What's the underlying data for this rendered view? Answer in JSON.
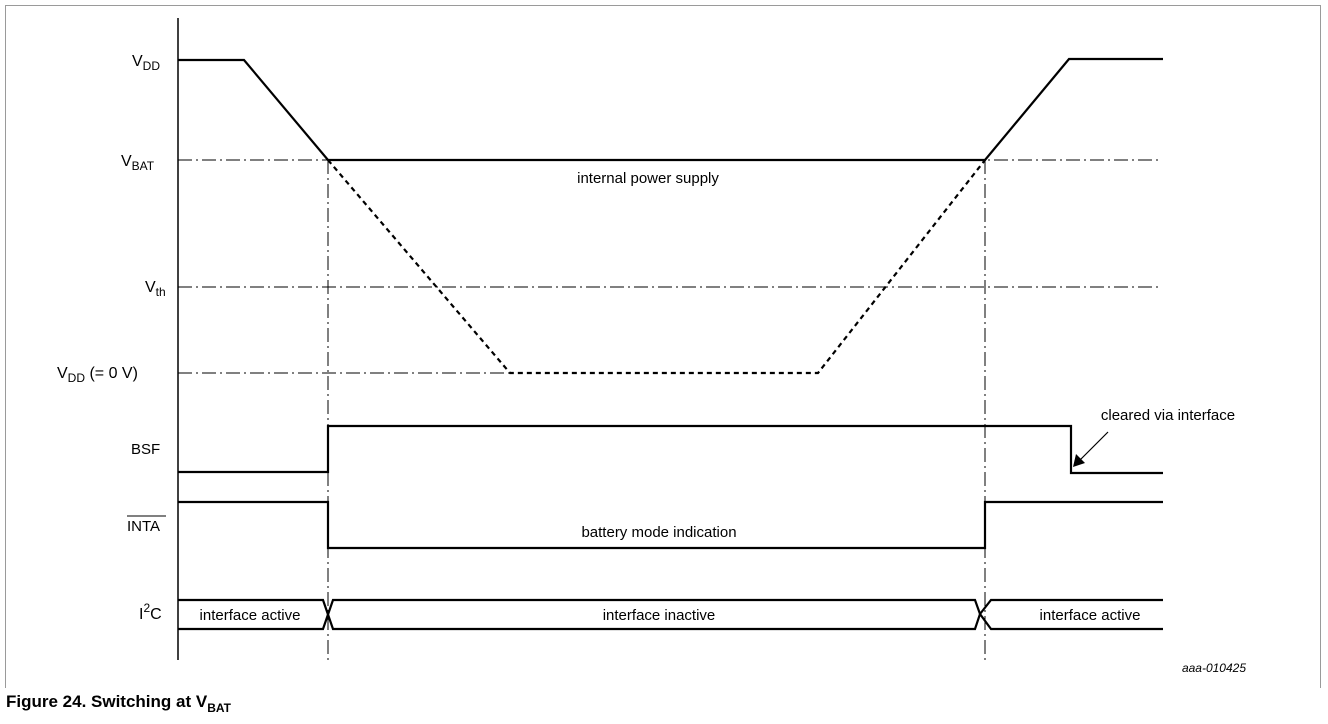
{
  "figure": {
    "caption_prefix": "Figure 24.  Switching at V",
    "caption_sub": "BAT",
    "id_code": "aaa-010425"
  },
  "signals": {
    "vdd": {
      "main": "V",
      "sub": "DD"
    },
    "vbat": {
      "main": "V",
      "sub": "BAT"
    },
    "vth": {
      "main": "V",
      "sub": "th"
    },
    "vdd0": {
      "main": "V",
      "sub": "DD",
      "suffix": " (= 0 V)"
    },
    "bsf": "BSF",
    "inta": "INTA",
    "i2c": {
      "main": "I",
      "sup": "2",
      "suffix": "C"
    }
  },
  "annotations": {
    "internal_power_supply": "internal power supply",
    "battery_mode_indication": "battery mode indication",
    "cleared_via_interface": "cleared via interface",
    "interface_active_left": "interface active",
    "interface_inactive": "interface inactive",
    "interface_active_right": "interface active"
  }
}
